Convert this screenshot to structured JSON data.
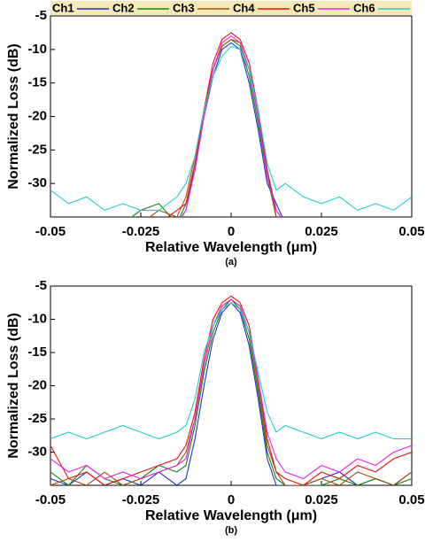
{
  "chart_data": [
    {
      "type": "line",
      "caption": "(a)",
      "x_label": "Relative Wavelength (μm)",
      "y_label": "Normalized Loss (dB)",
      "legend": "top",
      "xlim": [
        -0.05,
        0.05
      ],
      "xticks": [
        -0.05,
        -0.025,
        0,
        0.025,
        0.05
      ],
      "ylim": [
        -35,
        -5
      ],
      "yticks": [
        -5,
        -10,
        -15,
        -20,
        -25,
        -30
      ],
      "x": [
        -0.05,
        -0.045,
        -0.04,
        -0.035,
        -0.03,
        -0.025,
        -0.02,
        -0.015,
        -0.0125,
        -0.01,
        -0.0075,
        -0.005,
        -0.0025,
        0,
        0.0025,
        0.005,
        0.0075,
        0.01,
        0.0125,
        0.015,
        0.02,
        0.025,
        0.03,
        0.035,
        0.04,
        0.045,
        0.05
      ],
      "series": [
        {
          "name": "Ch1",
          "color": "#2233cc",
          "values": [
            -36,
            -36,
            -36,
            -36,
            -36,
            -36,
            -35,
            -36,
            -34,
            -27,
            -20,
            -14,
            -10,
            -9,
            -10,
            -15,
            -22,
            -30,
            -33,
            -36,
            -36,
            -36,
            -36,
            -36,
            -36,
            -36,
            -36
          ]
        },
        {
          "name": "Ch2",
          "color": "#118811",
          "values": [
            -36,
            -36,
            -36,
            -36,
            -36,
            -34,
            -33,
            -36,
            -33,
            -28,
            -20,
            -13,
            -9.5,
            -8.5,
            -9.5,
            -14,
            -21,
            -29,
            -35,
            -36,
            -36,
            -36,
            -36,
            -36,
            -36,
            -36,
            -36
          ]
        },
        {
          "name": "Ch3",
          "color": "#a0520a",
          "values": [
            -36,
            -36,
            -36,
            -36,
            -36,
            -36,
            -34,
            -35,
            -32,
            -26,
            -19,
            -13,
            -9.5,
            -8.5,
            -9,
            -13,
            -20,
            -28,
            -34,
            -36,
            -36,
            -36,
            -36,
            -36,
            -36,
            -36,
            -36
          ]
        },
        {
          "name": "Ch4",
          "color": "#ee1111",
          "values": [
            -36,
            -36,
            -36,
            -36,
            -36,
            -36,
            -36,
            -34,
            -33,
            -27,
            -19,
            -12,
            -8.5,
            -7.5,
            -8.5,
            -12,
            -19,
            -28,
            -35,
            -36,
            -36,
            -36,
            -36,
            -36,
            -36,
            -36,
            -36
          ]
        },
        {
          "name": "Ch5",
          "color": "#ee22ee",
          "values": [
            -36,
            -36,
            -36,
            -36,
            -36,
            -36,
            -36,
            -36,
            -34,
            -28,
            -20,
            -13,
            -9,
            -8,
            -9,
            -13,
            -20,
            -29,
            -34,
            -36,
            -36,
            -36,
            -36,
            -36,
            -36,
            -36,
            -36
          ]
        },
        {
          "name": "Ch6",
          "color": "#22cccc",
          "values": [
            -31,
            -33,
            -32,
            -34,
            -33,
            -34,
            -34,
            -32,
            -30,
            -26,
            -19,
            -14,
            -11,
            -9.5,
            -10,
            -13,
            -19,
            -27,
            -31,
            -30,
            -32,
            -33,
            -32,
            -34,
            -33,
            -34,
            -32
          ]
        }
      ]
    },
    {
      "type": "line",
      "caption": "(b)",
      "x_label": "Relative Wavelength (μm)",
      "y_label": "Normalized Loss (dB)",
      "xlim": [
        -0.05,
        0.05
      ],
      "xticks": [
        -0.05,
        -0.025,
        0,
        0.025,
        0.05
      ],
      "ylim": [
        -35,
        -5
      ],
      "yticks": [
        -5,
        -10,
        -15,
        -20,
        -25,
        -30
      ],
      "x": [
        -0.05,
        -0.045,
        -0.04,
        -0.035,
        -0.03,
        -0.025,
        -0.02,
        -0.015,
        -0.0125,
        -0.01,
        -0.0075,
        -0.005,
        -0.0025,
        0,
        0.0025,
        0.005,
        0.0075,
        0.01,
        0.0125,
        0.015,
        0.02,
        0.025,
        0.03,
        0.035,
        0.04,
        0.045,
        0.05
      ],
      "series": [
        {
          "name": "Ch1",
          "color": "#2233cc",
          "values": [
            -34,
            -35,
            -33,
            -35,
            -34,
            -35,
            -33,
            -35,
            -34,
            -28,
            -20,
            -13,
            -9,
            -7.5,
            -9,
            -14,
            -22,
            -31,
            -35,
            -35,
            -35,
            -34,
            -33,
            -35,
            -34,
            -35,
            -33
          ]
        },
        {
          "name": "Ch2",
          "color": "#118811",
          "values": [
            -33,
            -35,
            -32,
            -34,
            -35,
            -34,
            -32,
            -33,
            -32,
            -26,
            -18,
            -12,
            -8.5,
            -7,
            -8.5,
            -13,
            -21,
            -30,
            -34,
            -35,
            -35,
            -35,
            -34,
            -35,
            -34,
            -35,
            -34
          ]
        },
        {
          "name": "Ch3",
          "color": "#a0520a",
          "values": [
            -35,
            -34,
            -35,
            -33,
            -35,
            -34,
            -33,
            -32,
            -30,
            -25,
            -17,
            -11,
            -8,
            -7,
            -8,
            -12,
            -20,
            -29,
            -33,
            -35,
            -35,
            -34,
            -35,
            -33,
            -34,
            -35,
            -33
          ]
        },
        {
          "name": "Ch4",
          "color": "#ee1111",
          "values": [
            -29,
            -34,
            -33,
            -35,
            -34,
            -33,
            -32,
            -31,
            -29,
            -24,
            -16,
            -10,
            -7.5,
            -6.5,
            -7.5,
            -11,
            -19,
            -28,
            -33,
            -34,
            -35,
            -33,
            -34,
            -32,
            -33,
            -31,
            -30
          ]
        },
        {
          "name": "Ch5",
          "color": "#ee22ee",
          "values": [
            -31,
            -33,
            -32,
            -34,
            -33,
            -34,
            -33,
            -32,
            -31,
            -25,
            -17,
            -11,
            -8,
            -7,
            -8,
            -12,
            -19,
            -27,
            -31,
            -33,
            -34,
            -32,
            -33,
            -31,
            -32,
            -30,
            -29
          ]
        },
        {
          "name": "Ch6",
          "color": "#22cccc",
          "values": [
            -28,
            -27,
            -28,
            -27,
            -26,
            -27,
            -28,
            -27,
            -26,
            -22,
            -15,
            -11,
            -8.5,
            -7.5,
            -8.5,
            -12,
            -18,
            -24,
            -27,
            -26,
            -27,
            -28,
            -27,
            -28,
            -27,
            -28,
            -28
          ]
        }
      ]
    }
  ]
}
